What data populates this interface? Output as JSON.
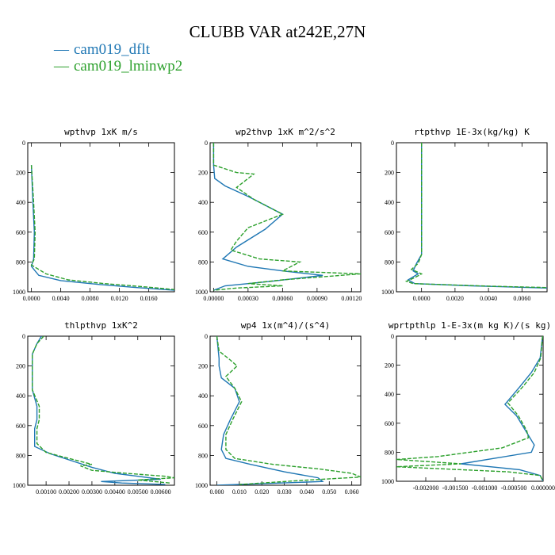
{
  "figure": {
    "title": "CLUBB VAR at242E,27N",
    "legend": [
      {
        "label": "cam019_dflt",
        "color": "#1f77b4",
        "dash": "solid",
        "marker": "—"
      },
      {
        "label": "cam019_lminwp2",
        "color": "#2ca02c",
        "dash": "dashed",
        "marker": "—"
      }
    ]
  },
  "chart_data": [
    {
      "type": "line",
      "title": "wpthvp  1xK m/s",
      "xlim": [
        -0.0005,
        0.0195
      ],
      "ylim": [
        0,
        1000
      ],
      "y_inverted": true,
      "xticks": [
        0.0,
        0.004,
        0.008,
        0.012,
        0.016
      ],
      "xtick_labels": [
        "0.0000",
        "0.0040",
        "0.0080",
        "0.0120",
        "0.0160"
      ],
      "yticks": [
        0,
        200,
        400,
        600,
        800,
        1000
      ],
      "series": [
        {
          "name": "cam019_dflt",
          "points": [
            [
              0.0,
              150
            ],
            [
              0.0002,
              400
            ],
            [
              0.0004,
              600
            ],
            [
              0.0003,
              780
            ],
            [
              0.0,
              830
            ],
            [
              0.001,
              890
            ],
            [
              0.004,
              925
            ],
            [
              0.009,
              950
            ],
            [
              0.014,
              970
            ],
            [
              0.0195,
              990
            ]
          ]
        },
        {
          "name": "cam019_lminwp2",
          "points": [
            [
              0.0,
              150
            ],
            [
              0.0003,
              400
            ],
            [
              0.0005,
              600
            ],
            [
              0.0004,
              780
            ],
            [
              0.0,
              820
            ],
            [
              0.002,
              880
            ],
            [
              0.005,
              920
            ],
            [
              0.01,
              945
            ],
            [
              0.015,
              965
            ],
            [
              0.0195,
              985
            ]
          ]
        }
      ]
    },
    {
      "type": "line",
      "title": "wp2thvp  1xK m^2/s^2",
      "xlim": [
        -3e-05,
        0.00128
      ],
      "ylim": [
        0,
        1000
      ],
      "y_inverted": true,
      "xticks": [
        0.0,
        0.0003,
        0.0006,
        0.0009,
        0.0012
      ],
      "xtick_labels": [
        "0.00000",
        "0.00030",
        "0.00060",
        "0.00090",
        "0.00120"
      ],
      "yticks": [
        0,
        200,
        400,
        600,
        800,
        1000
      ],
      "series": [
        {
          "name": "cam019_dflt",
          "points": [
            [
              0.0,
              0
            ],
            [
              0.0,
              150
            ],
            [
              1e-05,
              240
            ],
            [
              0.0001,
              290
            ],
            [
              0.0003,
              360
            ],
            [
              0.0006,
              480
            ],
            [
              0.00045,
              580
            ],
            [
              0.0002,
              700
            ],
            [
              8e-05,
              780
            ],
            [
              0.0003,
              830
            ],
            [
              0.0006,
              860
            ],
            [
              0.00095,
              890
            ],
            [
              0.0005,
              930
            ],
            [
              0.0001,
              960
            ],
            [
              0.0,
              990
            ]
          ]
        },
        {
          "name": "cam019_lminwp2",
          "points": [
            [
              0.0,
              0
            ],
            [
              0.0,
              150
            ],
            [
              0.0002,
              200
            ],
            [
              0.00035,
              210
            ],
            [
              0.0002,
              300
            ],
            [
              0.00035,
              380
            ],
            [
              0.0006,
              480
            ],
            [
              0.0003,
              570
            ],
            [
              0.0002,
              660
            ],
            [
              0.00015,
              720
            ],
            [
              0.0004,
              780
            ],
            [
              0.00075,
              800
            ],
            [
              0.0006,
              860
            ],
            [
              0.00128,
              880
            ],
            [
              0.0006,
              920
            ],
            [
              0.0003,
              945
            ],
            [
              0.0006,
              960
            ],
            [
              0.0002,
              975
            ],
            [
              0.0,
              990
            ]
          ]
        }
      ]
    },
    {
      "type": "line",
      "title": "rtpthvp  1E-3x(kg/kg) K",
      "xlim": [
        -0.0015,
        0.0075
      ],
      "ylim": [
        0,
        1000
      ],
      "y_inverted": true,
      "xticks": [
        0.0,
        0.002,
        0.004,
        0.006
      ],
      "xtick_labels": [
        "0.0000",
        "0.0020",
        "0.0040",
        "0.0060"
      ],
      "yticks": [
        0,
        200,
        400,
        600,
        800,
        1000
      ],
      "series": [
        {
          "name": "cam019_dflt",
          "points": [
            [
              0.0,
              0
            ],
            [
              0.0,
              750
            ],
            [
              -0.0003,
              810
            ],
            [
              -0.0005,
              860
            ],
            [
              -0.0002,
              880
            ],
            [
              -0.0008,
              920
            ],
            [
              -0.0004,
              945
            ],
            [
              0.003,
              960
            ],
            [
              0.0075,
              975
            ]
          ]
        },
        {
          "name": "cam019_lminwp2",
          "points": [
            [
              0.0,
              0
            ],
            [
              0.0,
              750
            ],
            [
              -0.0002,
              810
            ],
            [
              -0.0006,
              850
            ],
            [
              0.0,
              880
            ],
            [
              -0.0004,
              905
            ],
            [
              -0.0009,
              930
            ],
            [
              -0.0005,
              945
            ],
            [
              0.004,
              962
            ],
            [
              0.0075,
              972
            ]
          ]
        }
      ]
    },
    {
      "type": "line",
      "title": "thlpthvp  1xK^2",
      "xlim": [
        0.0002,
        0.0066
      ],
      "ylim": [
        0,
        1000
      ],
      "y_inverted": true,
      "xticks": [
        0.001,
        0.002,
        0.003,
        0.004,
        0.005,
        0.006
      ],
      "xtick_labels": [
        "0.00100",
        "0.00200",
        "0.00300",
        "0.00400",
        "0.00500",
        "0.00600"
      ],
      "yticks": [
        0,
        200,
        400,
        600,
        800,
        1000
      ],
      "series": [
        {
          "name": "cam019_dflt",
          "points": [
            [
              0.0008,
              0
            ],
            [
              0.0006,
              50
            ],
            [
              0.0004,
              120
            ],
            [
              0.0004,
              200
            ],
            [
              0.0004,
              360
            ],
            [
              0.0006,
              470
            ],
            [
              0.0006,
              560
            ],
            [
              0.0005,
              620
            ],
            [
              0.0005,
              740
            ],
            [
              0.0012,
              790
            ],
            [
              0.002,
              830
            ],
            [
              0.003,
              880
            ],
            [
              0.004,
              920
            ],
            [
              0.005,
              940
            ],
            [
              0.006,
              960
            ],
            [
              0.0034,
              975
            ],
            [
              0.0043,
              985
            ],
            [
              0.0062,
              995
            ]
          ]
        },
        {
          "name": "cam019_lminwp2",
          "points": [
            [
              0.0009,
              0
            ],
            [
              0.0006,
              50
            ],
            [
              0.0004,
              120
            ],
            [
              0.0004,
              200
            ],
            [
              0.0004,
              360
            ],
            [
              0.0007,
              470
            ],
            [
              0.0007,
              560
            ],
            [
              0.0006,
              620
            ],
            [
              0.0006,
              720
            ],
            [
              0.001,
              780
            ],
            [
              0.002,
              820
            ],
            [
              0.003,
              860
            ],
            [
              0.0025,
              870
            ],
            [
              0.003,
              900
            ],
            [
              0.0045,
              920
            ],
            [
              0.0062,
              940
            ],
            [
              0.0066,
              950
            ],
            [
              0.005,
              965
            ],
            [
              0.0064,
              985
            ]
          ]
        }
      ]
    },
    {
      "type": "line",
      "title": "wp4  1x(m^4)/(s^4)",
      "xlim": [
        -0.003,
        0.064
      ],
      "ylim": [
        0,
        1000
      ],
      "y_inverted": true,
      "xticks": [
        0.0,
        0.01,
        0.02,
        0.03,
        0.04,
        0.05,
        0.06
      ],
      "xtick_labels": [
        "0.000",
        "0.010",
        "0.020",
        "0.030",
        "0.040",
        "0.050",
        "0.060"
      ],
      "yticks": [
        0,
        200,
        400,
        600,
        800,
        1000
      ],
      "series": [
        {
          "name": "cam019_dflt",
          "points": [
            [
              0.0,
              0
            ],
            [
              0.001,
              150
            ],
            [
              0.001,
              200
            ],
            [
              0.002,
              280
            ],
            [
              0.008,
              350
            ],
            [
              0.01,
              440
            ],
            [
              0.006,
              560
            ],
            [
              0.003,
              660
            ],
            [
              0.002,
              760
            ],
            [
              0.004,
              820
            ],
            [
              0.015,
              860
            ],
            [
              0.03,
              910
            ],
            [
              0.045,
              950
            ],
            [
              0.047,
              975
            ],
            [
              0.02,
              990
            ],
            [
              0.0,
              1000
            ]
          ]
        },
        {
          "name": "cam019_lminwp2",
          "points": [
            [
              0.0,
              0
            ],
            [
              0.001,
              100
            ],
            [
              0.006,
              160
            ],
            [
              0.009,
              200
            ],
            [
              0.004,
              270
            ],
            [
              0.008,
              350
            ],
            [
              0.011,
              440
            ],
            [
              0.007,
              560
            ],
            [
              0.004,
              660
            ],
            [
              0.004,
              760
            ],
            [
              0.008,
              820
            ],
            [
              0.025,
              860
            ],
            [
              0.045,
              890
            ],
            [
              0.06,
              920
            ],
            [
              0.064,
              945
            ],
            [
              0.035,
              970
            ],
            [
              0.01,
              995
            ]
          ]
        }
      ]
    },
    {
      "type": "line",
      "title": "wprtpthlp  1-E-3x(m kg K)/(s kg)",
      "xlim": [
        -0.0025,
        0.0
      ],
      "ylim": [
        0,
        1000
      ],
      "y_inverted": true,
      "xticks": [
        -0.002,
        -0.0015,
        -0.001,
        -0.0005,
        0.0
      ],
      "xtick_labels": [
        "-0.002000",
        "-0.001500",
        "-0.001000",
        "-0.000500",
        "0.000000"
      ],
      "yticks": [
        0,
        200,
        400,
        600,
        800,
        1000
      ],
      "series": [
        {
          "name": "cam019_dflt",
          "points": [
            [
              -1e-05,
              0
            ],
            [
              -5e-05,
              150
            ],
            [
              -0.0002,
              250
            ],
            [
              -0.0004,
              350
            ],
            [
              -0.00065,
              470
            ],
            [
              -0.00045,
              550
            ],
            [
              -0.0003,
              650
            ],
            [
              -0.00015,
              750
            ],
            [
              -0.0002,
              800
            ],
            [
              -0.0008,
              840
            ],
            [
              -0.0014,
              880
            ],
            [
              -0.0004,
              920
            ],
            [
              -5e-05,
              960
            ],
            [
              0.0,
              1000
            ]
          ]
        },
        {
          "name": "cam019_lminwp2",
          "points": [
            [
              -1e-05,
              0
            ],
            [
              -4e-05,
              150
            ],
            [
              -0.00015,
              250
            ],
            [
              -0.00035,
              350
            ],
            [
              -0.0006,
              460
            ],
            [
              -0.00042,
              550
            ],
            [
              -0.00028,
              650
            ],
            [
              -0.00025,
              700
            ],
            [
              -0.0007,
              770
            ],
            [
              -0.0018,
              830
            ],
            [
              -0.0025,
              850
            ],
            [
              -0.0014,
              880
            ],
            [
              -0.0025,
              900
            ],
            [
              -0.0006,
              935
            ],
            [
              -5e-05,
              960
            ],
            [
              0.0,
              1000
            ]
          ]
        }
      ]
    }
  ]
}
